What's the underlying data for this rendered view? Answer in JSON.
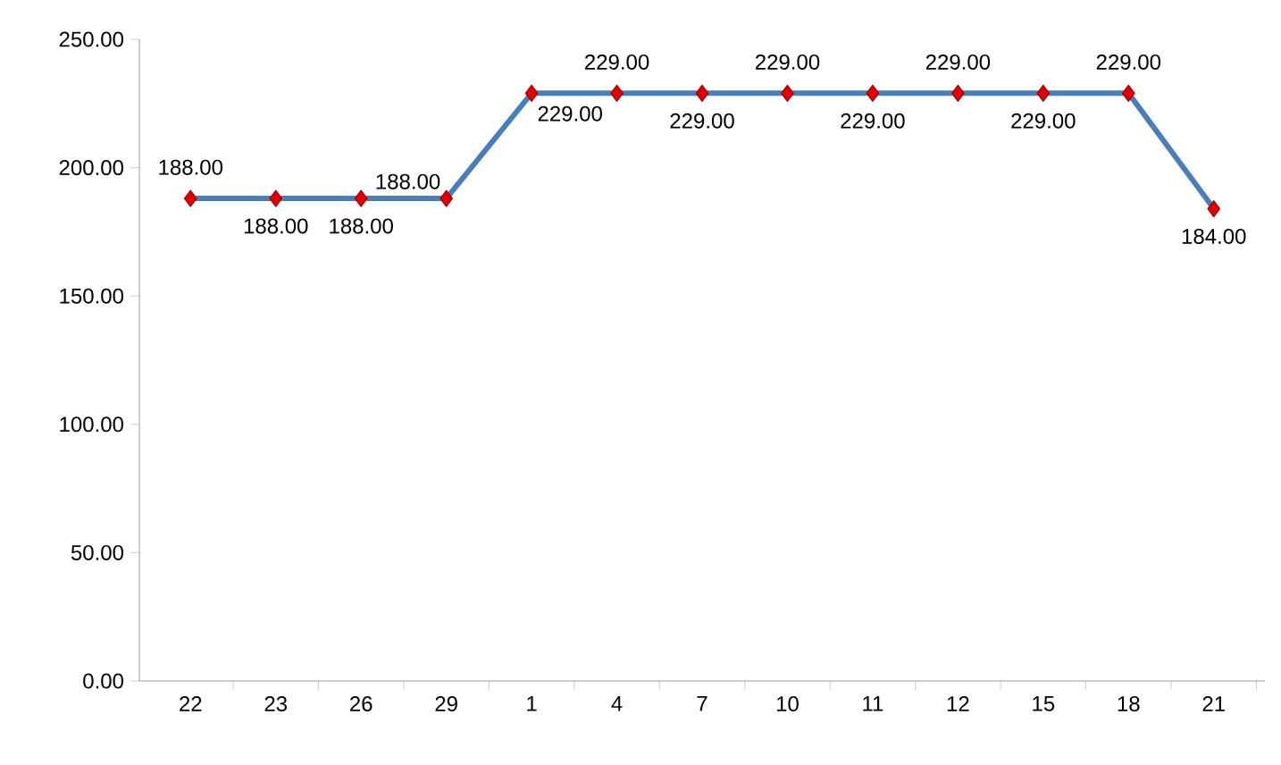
{
  "chart_data": {
    "type": "line",
    "categories": [
      "22",
      "23",
      "26",
      "29",
      "1",
      "4",
      "7",
      "10",
      "11",
      "12",
      "15",
      "18",
      "21"
    ],
    "series": [
      {
        "color": "#4a7ebb",
        "values": [
          188,
          188,
          188,
          188,
          229,
          229,
          229,
          229,
          229,
          229,
          229,
          229,
          184
        ],
        "value_labels": [
          "188.00",
          "188.00",
          "188.00",
          "188.00",
          "229.00",
          "229.00",
          "229.00",
          "229.00",
          "229.00",
          "229.00",
          "229.00",
          "229.00",
          "184.00"
        ]
      }
    ],
    "ylim": [
      0,
      250
    ],
    "yticks": [
      {
        "value": 0,
        "label": "0.00"
      },
      {
        "value": 50,
        "label": "50.00"
      },
      {
        "value": 100,
        "label": "100.00"
      },
      {
        "value": 150,
        "label": "150.00"
      },
      {
        "value": 200,
        "label": "200.00"
      },
      {
        "value": 250,
        "label": "250.00"
      }
    ],
    "marker": "diamond",
    "line_style": "solid",
    "grid": false
  }
}
